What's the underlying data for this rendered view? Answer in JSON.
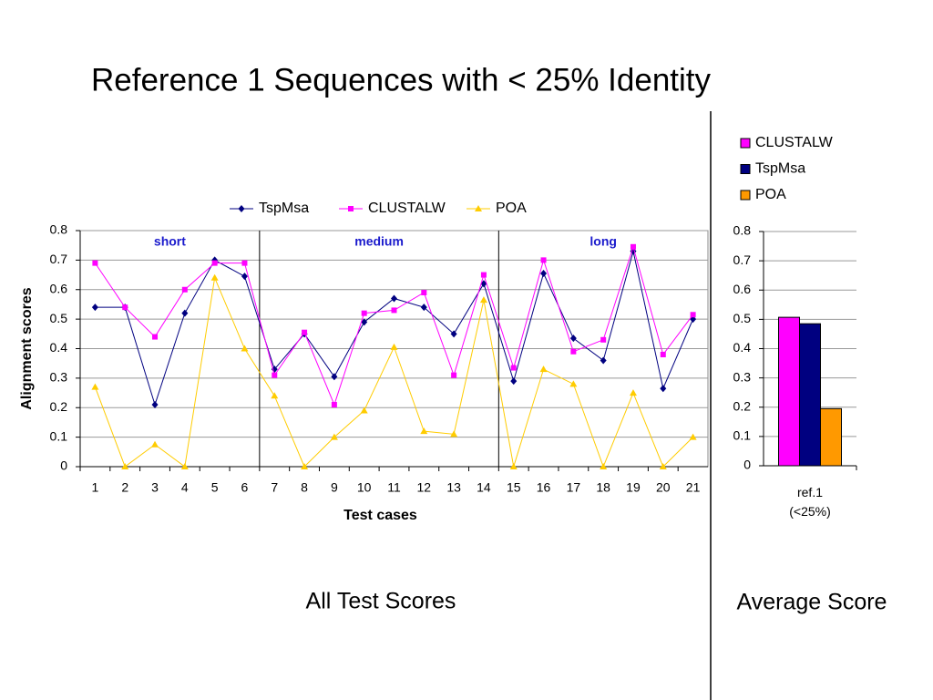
{
  "title": "Reference 1 Sequences with < 25% Identity",
  "captions": [
    "All Test Scores",
    "Average Score"
  ],
  "chart_data": [
    {
      "type": "line",
      "x_label": "Test cases",
      "y_label": "Alignment scores",
      "categories": [
        "1",
        "2",
        "3",
        "4",
        "5",
        "6",
        "7",
        "8",
        "9",
        "10",
        "11",
        "12",
        "13",
        "14",
        "15",
        "16",
        "17",
        "18",
        "19",
        "20",
        "21"
      ],
      "annotations": [
        "short",
        "medium",
        "long"
      ],
      "series": [
        {
          "name": "TspMsa",
          "color": "#000080",
          "marker": "diamond",
          "values": [
            0.54,
            0.54,
            0.21,
            0.52,
            0.7,
            0.645,
            0.33,
            0.45,
            0.305,
            0.49,
            0.57,
            0.54,
            0.45,
            0.62,
            0.29,
            0.655,
            0.435,
            0.36,
            0.73,
            0.265,
            0.5
          ]
        },
        {
          "name": "CLUSTALW",
          "color": "#ff00ff",
          "marker": "square",
          "values": [
            0.69,
            0.54,
            0.44,
            0.6,
            0.69,
            0.69,
            0.31,
            0.455,
            0.21,
            0.52,
            0.53,
            0.59,
            0.31,
            0.65,
            0.335,
            0.7,
            0.39,
            0.43,
            0.745,
            0.38,
            0.515
          ]
        },
        {
          "name": "POA",
          "color": "#ffcc00",
          "marker": "triangle",
          "values": [
            0.27,
            0,
            0.075,
            0,
            0.64,
            0.4,
            0.24,
            0,
            0.1,
            0.19,
            0.405,
            0.12,
            0.11,
            0.565,
            0,
            0.33,
            0.28,
            0,
            0.25,
            0,
            0.1
          ]
        }
      ],
      "ylim": [
        0,
        0.8
      ],
      "yticks": [
        0,
        0.1,
        0.2,
        0.3,
        0.4,
        0.5,
        0.6,
        0.7,
        0.8
      ],
      "grid": true,
      "legend": "top"
    },
    {
      "type": "bar",
      "categories": [
        "ref.1\n(<25%)"
      ],
      "series": [
        {
          "name": "CLUSTALW",
          "color": "#ff00ff",
          "values": [
            0.507
          ]
        },
        {
          "name": "TspMsa",
          "color": "#000080",
          "values": [
            0.485
          ]
        },
        {
          "name": "POA",
          "color": "#ff9900",
          "values": [
            0.195
          ]
        }
      ],
      "ylim": [
        0,
        0.8
      ],
      "yticks": [
        0,
        0.1,
        0.2,
        0.3,
        0.4,
        0.5,
        0.6,
        0.7,
        0.8
      ],
      "grid": true,
      "legend": "top-right"
    }
  ]
}
